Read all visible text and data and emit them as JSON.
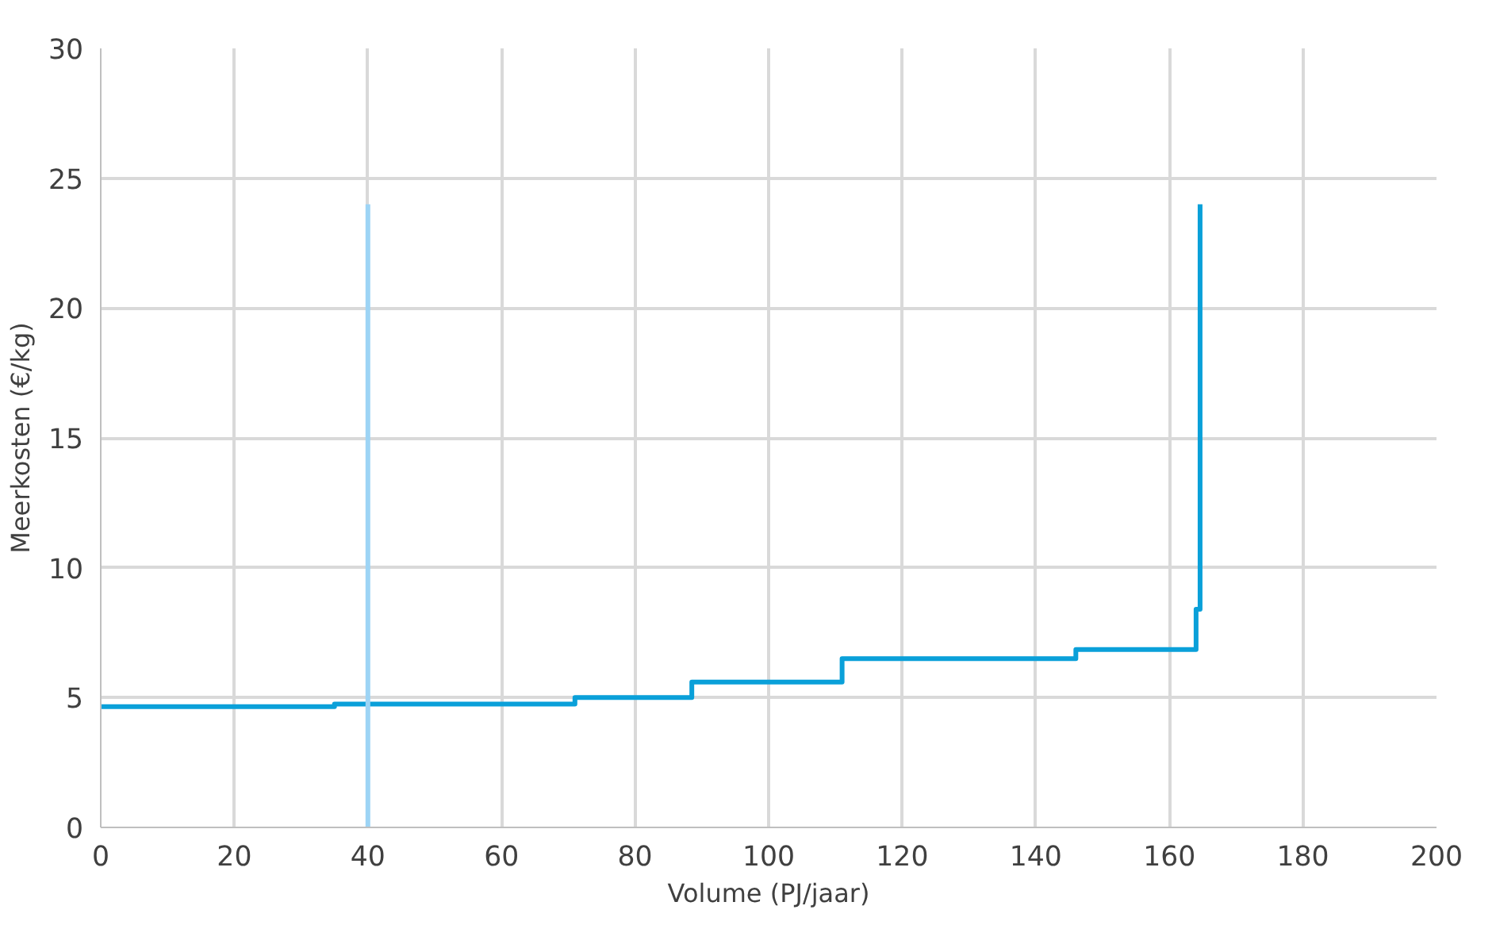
{
  "chart_data": {
    "type": "step",
    "xlabel": "Volume (PJ/jaar)",
    "ylabel": "Meerkosten (€/kg)",
    "xlim": [
      0,
      200
    ],
    "xticks": [
      0,
      20,
      40,
      60,
      80,
      100,
      120,
      140,
      160,
      180,
      200
    ],
    "ylim": [
      0,
      30
    ],
    "yticks": [
      0,
      5,
      10,
      15,
      20,
      25,
      30
    ],
    "grid": true,
    "series": [
      {
        "color": "#0aa0d9",
        "x": [
          0,
          35,
          71,
          88.5,
          111,
          146,
          164,
          164.6
        ],
        "values": [
          4.65,
          4.75,
          5.0,
          5.6,
          6.5,
          6.85,
          8.4,
          24
        ]
      },
      {
        "type": "line",
        "color": "#9dd4f5",
        "x": [
          40,
          40
        ],
        "values": [
          0,
          24
        ]
      }
    ]
  }
}
